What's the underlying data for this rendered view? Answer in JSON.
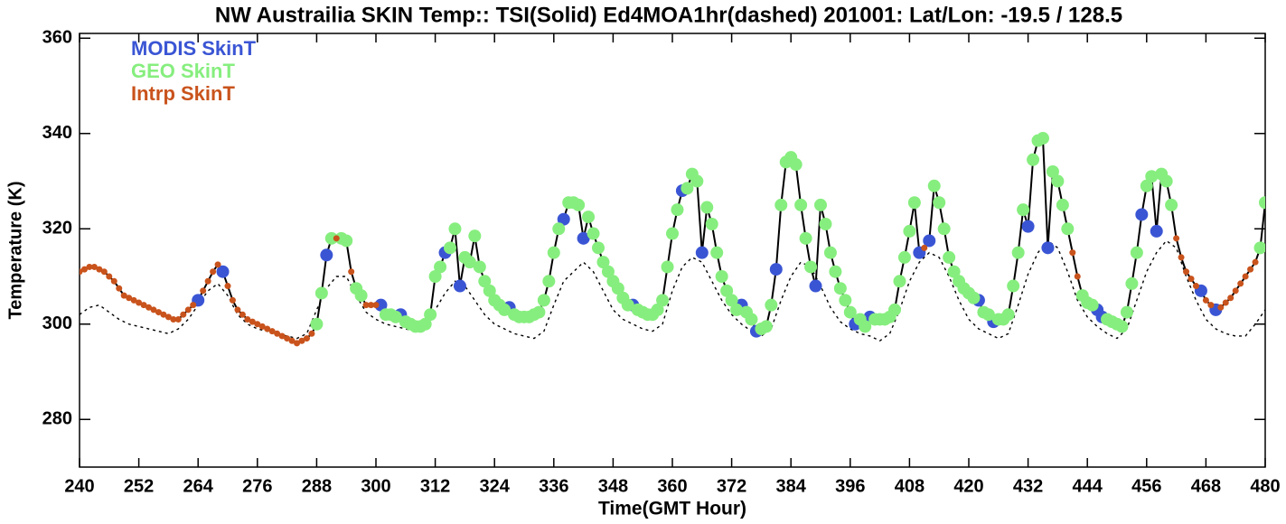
{
  "chart_data": {
    "type": "line",
    "title": "NW Austrailia SKIN Temp:: TSI(Solid) Ed4MOA1hr(dashed) 201001: Lat/Lon: -19.5 / 128.5",
    "xlabel": "Time(GMT Hour)",
    "ylabel": "Temperature (K)",
    "xlim": [
      240,
      480
    ],
    "ylim": [
      270,
      361
    ],
    "xticks": [
      240,
      252,
      264,
      276,
      288,
      300,
      312,
      324,
      336,
      348,
      360,
      372,
      384,
      396,
      408,
      420,
      432,
      444,
      456,
      468,
      480
    ],
    "yticks": [
      280,
      300,
      320,
      340,
      360
    ],
    "x": [
      240,
      241,
      242,
      243,
      244,
      245,
      246,
      247,
      248,
      249,
      250,
      251,
      252,
      253,
      254,
      255,
      256,
      257,
      258,
      259,
      260,
      261,
      262,
      263,
      264,
      265,
      266,
      267,
      268,
      269,
      270,
      271,
      272,
      273,
      274,
      275,
      276,
      277,
      278,
      279,
      280,
      281,
      282,
      283,
      284,
      285,
      286,
      287,
      288,
      289,
      290,
      291,
      292,
      293,
      294,
      295,
      296,
      297,
      298,
      299,
      300,
      301,
      302,
      303,
      304,
      305,
      306,
      307,
      308,
      309,
      310,
      311,
      312,
      313,
      314,
      315,
      316,
      317,
      318,
      319,
      320,
      321,
      322,
      323,
      324,
      325,
      326,
      327,
      328,
      329,
      330,
      331,
      332,
      333,
      334,
      335,
      336,
      337,
      338,
      339,
      340,
      341,
      342,
      343,
      344,
      345,
      346,
      347,
      348,
      349,
      350,
      351,
      352,
      353,
      354,
      355,
      356,
      357,
      358,
      359,
      360,
      361,
      362,
      363,
      364,
      365,
      366,
      367,
      368,
      369,
      370,
      371,
      372,
      373,
      374,
      375,
      376,
      377,
      378,
      379,
      380,
      381,
      382,
      383,
      384,
      385,
      386,
      387,
      388,
      389,
      390,
      391,
      392,
      393,
      394,
      395,
      396,
      397,
      398,
      399,
      400,
      401,
      402,
      403,
      404,
      405,
      406,
      407,
      408,
      409,
      410,
      411,
      412,
      413,
      414,
      415,
      416,
      417,
      418,
      419,
      420,
      421,
      422,
      423,
      424,
      425,
      426,
      427,
      428,
      429,
      430,
      431,
      432,
      433,
      434,
      435,
      436,
      437,
      438,
      439,
      440,
      441,
      442,
      443,
      444,
      445,
      446,
      447,
      448,
      449,
      450,
      451,
      452,
      453,
      454,
      455,
      456,
      457,
      458,
      459,
      460,
      461,
      462,
      463,
      464,
      465,
      466,
      467,
      468,
      469,
      470,
      471,
      472,
      473,
      474,
      475,
      476,
      477,
      478,
      479,
      480
    ],
    "series": [
      {
        "color": "#000000",
        "dash": "solid",
        "values": [
          311,
          311.5,
          312,
          312,
          311.5,
          311,
          310,
          309,
          307.5,
          306,
          305.5,
          305,
          304.5,
          304,
          303.5,
          303,
          302.5,
          302,
          301.5,
          301,
          301,
          302,
          303,
          304,
          305,
          307,
          309,
          311,
          312.5,
          311,
          308,
          305,
          303,
          302,
          301,
          300.5,
          300,
          299.5,
          299,
          298.5,
          298,
          297.5,
          297,
          296.5,
          296,
          296.5,
          297,
          298,
          300,
          306.5,
          314.5,
          318,
          318,
          318,
          317.5,
          311,
          307.5,
          306,
          304,
          304,
          304,
          304,
          302,
          302,
          301.5,
          302,
          300.5,
          300,
          299.5,
          299.5,
          300,
          302,
          310,
          312,
          315,
          316,
          320,
          308,
          314,
          313,
          318.5,
          312,
          309,
          307,
          305,
          304,
          303,
          303.5,
          302,
          301.5,
          301.5,
          301.5,
          302,
          302.5,
          305,
          309,
          315,
          320,
          322,
          325.5,
          325.5,
          325,
          318,
          322.5,
          319,
          316,
          313,
          311,
          309,
          307.5,
          305.5,
          304,
          304,
          303,
          302.5,
          302,
          302,
          303,
          305,
          312,
          319,
          324,
          328,
          328.5,
          331.5,
          330,
          315,
          324.5,
          321,
          315,
          310,
          307,
          305,
          303,
          304,
          302.5,
          301,
          298.5,
          299,
          299.5,
          304,
          311.5,
          325,
          334,
          335,
          333.5,
          325,
          318,
          312,
          308,
          325,
          321,
          315,
          311,
          307.5,
          305,
          302.5,
          300,
          301,
          299.5,
          301.5,
          301,
          301,
          301,
          301.5,
          303,
          309,
          314,
          319.5,
          325.5,
          315,
          316,
          317.5,
          329,
          325.5,
          320,
          314,
          311,
          309,
          307.5,
          306.5,
          305.5,
          305,
          302.5,
          302,
          300.5,
          301,
          301,
          302,
          308,
          315,
          324,
          320.5,
          334.5,
          338.5,
          339,
          316,
          332,
          330,
          325,
          320,
          315,
          310,
          306,
          304.5,
          304,
          303,
          301.5,
          301,
          300.5,
          300,
          299.5,
          302.5,
          308.5,
          315,
          323,
          329,
          331,
          319.5,
          331.5,
          330,
          325,
          318,
          314,
          311,
          309.5,
          308,
          307,
          305,
          304,
          303,
          303.5,
          304.5,
          305.5,
          307,
          308.5,
          310,
          311.5,
          313,
          316,
          325.5
        ]
      },
      {
        "color": "#000000",
        "dash": "dotted",
        "x": [
          240,
          242,
          244,
          246,
          248,
          250,
          252,
          254,
          256,
          258,
          260,
          262,
          264,
          266,
          268,
          270,
          272,
          274,
          276,
          278,
          280,
          282,
          284,
          286,
          288,
          290,
          292,
          294,
          296,
          298,
          300,
          302,
          304,
          306,
          308,
          310,
          312,
          314,
          316,
          318,
          320,
          322,
          324,
          326,
          328,
          330,
          332,
          334,
          336,
          338,
          340,
          342,
          344,
          346,
          348,
          350,
          352,
          354,
          356,
          358,
          360,
          362,
          364,
          366,
          368,
          370,
          372,
          374,
          376,
          378,
          380,
          382,
          384,
          386,
          388,
          390,
          392,
          394,
          396,
          398,
          400,
          402,
          404,
          406,
          408,
          410,
          412,
          414,
          416,
          418,
          420,
          422,
          424,
          426,
          428,
          430,
          432,
          434,
          436,
          438,
          440,
          442,
          444,
          446,
          448,
          450,
          452,
          454,
          456,
          458,
          460,
          462,
          464,
          466,
          468,
          470,
          472,
          474,
          476,
          478,
          480
        ],
        "values": [
          302,
          303.5,
          304,
          302.5,
          301,
          300,
          299.5,
          299,
          298.5,
          298,
          299,
          301,
          304,
          307,
          308.5,
          306,
          302,
          300,
          299,
          298.5,
          298,
          297.5,
          297,
          298,
          303,
          307.5,
          310,
          310,
          306,
          302.5,
          301,
          300,
          299.5,
          299,
          298.5,
          299,
          303,
          306.5,
          309,
          308,
          305,
          302,
          300,
          299,
          298,
          297.5,
          297,
          298.5,
          304,
          309,
          311,
          313,
          311,
          307,
          303,
          301,
          300,
          299,
          298.5,
          300,
          307,
          312,
          314,
          313,
          309,
          305,
          302,
          300,
          298.5,
          297.5,
          299,
          305,
          310,
          313,
          312,
          308,
          303.5,
          300.5,
          299,
          298,
          297.5,
          296.5,
          298,
          303,
          309,
          313,
          315,
          314,
          310,
          305,
          301,
          299,
          298,
          297,
          298,
          304,
          310.5,
          315,
          317.5,
          316,
          311,
          305,
          301.5,
          299.5,
          298,
          297,
          299,
          305,
          311,
          315,
          317.5,
          316,
          310,
          305,
          301,
          299,
          298,
          297.5,
          297.5,
          300,
          303
        ]
      }
    ],
    "markers": [
      {
        "name": "MODIS SkinT",
        "color": "#3a55d4",
        "marker_size": 7,
        "x": [
          264,
          269,
          290,
          301,
          305,
          314,
          317,
          327,
          338,
          342,
          352,
          362,
          366,
          374,
          377,
          381,
          389,
          397,
          400,
          410,
          412,
          422,
          425,
          432,
          436,
          446,
          447,
          455,
          458,
          467,
          470
        ],
        "values": [
          305,
          311,
          314.5,
          304,
          302,
          315,
          308,
          303.5,
          322,
          318,
          304,
          328,
          315,
          304,
          298.5,
          311.5,
          308,
          300,
          301.5,
          315,
          317.5,
          305,
          300.5,
          320.5,
          316,
          303,
          301.5,
          323,
          319.5,
          307,
          303
        ]
      },
      {
        "name": "GEO SkinT",
        "color": "#86ee7e",
        "marker_size": 7,
        "x": [
          288,
          289,
          291,
          293,
          294,
          296,
          297,
          302,
          303,
          304,
          306,
          307,
          308,
          309,
          310,
          311,
          312,
          313,
          315,
          316,
          318,
          319,
          320,
          321,
          322,
          323,
          324,
          325,
          326,
          328,
          329,
          330,
          331,
          332,
          333,
          334,
          335,
          336,
          337,
          339,
          340,
          341,
          343,
          344,
          345,
          346,
          347,
          348,
          349,
          350,
          351,
          353,
          354,
          355,
          356,
          357,
          358,
          359,
          360,
          361,
          363,
          364,
          365,
          367,
          368,
          369,
          370,
          371,
          372,
          373,
          375,
          376,
          378,
          379,
          380,
          382,
          383,
          384,
          385,
          386,
          387,
          388,
          390,
          391,
          392,
          393,
          394,
          395,
          396,
          398,
          399,
          401,
          402,
          403,
          404,
          405,
          406,
          407,
          408,
          409,
          413,
          414,
          415,
          416,
          417,
          418,
          419,
          420,
          421,
          423,
          424,
          426,
          427,
          428,
          429,
          430,
          431,
          433,
          434,
          435,
          437,
          438,
          439,
          440,
          443,
          444,
          445,
          448,
          449,
          450,
          451,
          452,
          453,
          454,
          456,
          457,
          459,
          460,
          461,
          479,
          480
        ],
        "values": [
          300,
          306.5,
          318,
          318,
          317.5,
          307.5,
          306,
          302,
          302,
          301.5,
          300.5,
          300,
          299.5,
          299.5,
          300,
          302,
          310,
          312,
          316,
          320,
          314,
          313,
          318.5,
          312,
          309,
          307,
          305,
          304,
          303,
          302,
          301.5,
          301.5,
          301.5,
          302,
          302.5,
          305,
          309,
          315,
          320,
          325.5,
          325.5,
          325,
          322.5,
          319,
          316,
          313,
          311,
          309,
          307.5,
          305.5,
          304,
          303,
          302.5,
          302,
          302,
          303,
          305,
          312,
          319,
          324,
          328.5,
          331.5,
          330,
          324.5,
          321,
          315,
          310,
          307,
          305,
          303,
          302.5,
          301,
          299,
          299.5,
          304,
          325,
          334,
          335,
          333.5,
          325,
          318,
          312,
          325,
          321,
          315,
          311,
          307.5,
          305,
          302.5,
          301,
          299.5,
          301,
          301,
          301,
          301.5,
          303,
          309,
          314,
          319.5,
          325.5,
          329,
          325.5,
          320,
          314,
          311,
          309,
          307.5,
          306.5,
          305.5,
          302.5,
          302,
          301,
          301,
          302,
          308,
          315,
          324,
          334.5,
          338.5,
          339,
          332,
          330,
          325,
          320,
          306,
          304.5,
          304,
          301,
          300.5,
          300,
          299.5,
          302.5,
          308.5,
          315,
          329,
          331,
          331.5,
          330,
          325,
          316,
          325.5
        ]
      },
      {
        "name": "Intrp SkinT",
        "color": "#c9531c",
        "marker_size": 3.5,
        "x": [
          240,
          241,
          242,
          243,
          244,
          245,
          246,
          247,
          248,
          249,
          250,
          251,
          252,
          253,
          254,
          255,
          256,
          257,
          258,
          259,
          260,
          261,
          262,
          263,
          265,
          266,
          267,
          268,
          270,
          271,
          272,
          273,
          274,
          275,
          276,
          277,
          278,
          279,
          280,
          281,
          282,
          283,
          284,
          285,
          286,
          287,
          292,
          295,
          298,
          299,
          300,
          411,
          441,
          442,
          462,
          463,
          464,
          465,
          466,
          468,
          469,
          471,
          472,
          473,
          474,
          475,
          476,
          477,
          478
        ],
        "values": [
          311,
          311.5,
          312,
          312,
          311.5,
          311,
          310,
          309,
          307.5,
          306,
          305.5,
          305,
          304.5,
          304,
          303.5,
          303,
          302.5,
          302,
          301.5,
          301,
          301,
          302,
          303,
          304,
          307,
          309,
          311,
          312.5,
          308,
          305,
          303,
          302,
          301,
          300.5,
          300,
          299.5,
          299,
          298.5,
          298,
          297.5,
          297,
          296.5,
          296,
          296.5,
          297,
          298,
          318,
          311,
          304,
          304,
          304,
          316,
          315,
          310,
          318,
          314,
          311,
          309.5,
          308,
          305,
          304,
          303.5,
          304.5,
          305.5,
          307,
          308.5,
          310,
          311.5,
          313
        ]
      }
    ]
  }
}
